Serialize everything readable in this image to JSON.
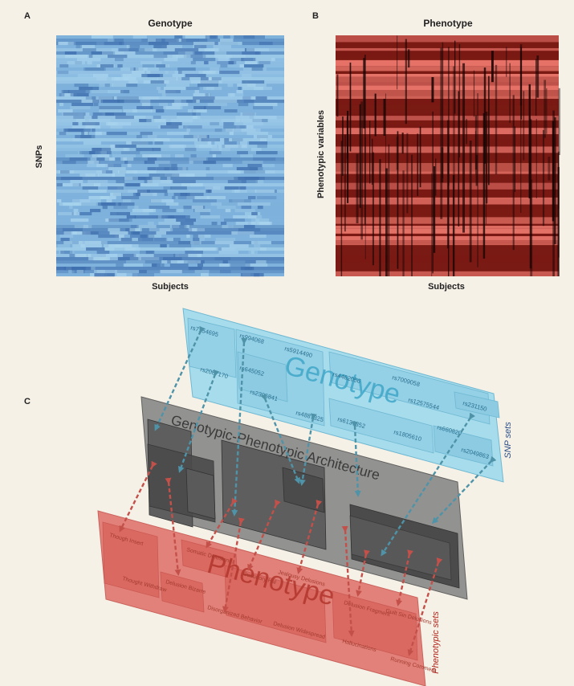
{
  "panel_a": {
    "letter": "A",
    "title": "Genotype",
    "ylabel": "SNPs",
    "xlabel": "Subjects",
    "colors": {
      "base": "#7fb2dc",
      "dark": "#3f6fae",
      "light": "#a9d4ee"
    }
  },
  "panel_b": {
    "letter": "B",
    "title": "Phenotype",
    "ylabel": "Phenotypic variables",
    "xlabel": "Subjects",
    "colors": {
      "base": "#7a1a14",
      "light": "#e8756a",
      "black": "#1a0605"
    }
  },
  "panel_c": {
    "letter": "C",
    "genotype_label": "Genotype",
    "architecture_label": "Genotypic-Phenotypic Architecture",
    "phenotype_label": "Phenotype",
    "snp_sets_label": "SNP sets",
    "phenotypic_sets_label": "Phenotypic sets",
    "snps": [
      "rs7154695",
      "rs2087170",
      "rs994068",
      "rs5914490",
      "rs645052",
      "rs2396841",
      "rs4462056",
      "rs7009058",
      "rs12575544",
      "rs231150",
      "rs4887325",
      "rs6137352",
      "rs1805610",
      "rs660820",
      "rs2049863"
    ],
    "phenotypes": [
      "Though Insert",
      "Thought Withdraw",
      "Delusion Bizarre",
      "Somatic Delusions",
      "Gustatory Hal",
      "Jealousy Delusions",
      "Disorganized Behavior",
      "Delusion Widespread",
      "Delusion Fragment",
      "Guilt Sin Delusions",
      "Hallucinations",
      "Running Comment"
    ],
    "colors": {
      "genotype": "#a6dcec",
      "architecture": "#8a8a8a",
      "phenotype": "#e0726a"
    }
  }
}
